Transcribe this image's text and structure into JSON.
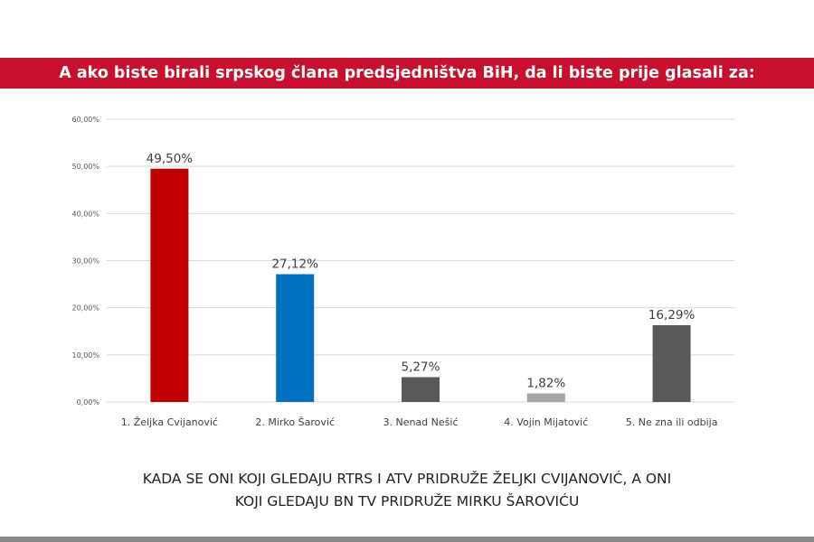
{
  "chart_data": {
    "type": "bar",
    "title": "A ako biste birali srpskog člana predsjedništva BiH, da li biste prije glasali za:",
    "categories": [
      "1. Željka Cvijanović",
      "2. Mirko Šarović",
      "3. Nenad Nešić",
      "4. Vojin Mijatović",
      "5. Ne zna ili odbija"
    ],
    "values": [
      49.5,
      27.12,
      5.27,
      1.82,
      16.29
    ],
    "data_labels": [
      "49,50%",
      "27,12%",
      "5,27%",
      "1,82%",
      "16,29%"
    ],
    "colors": [
      "#c00000",
      "#0070c0",
      "#595959",
      "#a6a6a6",
      "#595959"
    ],
    "yticks": [
      "0,00%",
      "10,00%",
      "20,00%",
      "30,00%",
      "40,00%",
      "50,00%",
      "60,00%"
    ],
    "ylim": [
      0,
      60
    ],
    "grid": true,
    "legend": "none",
    "xlabel": "",
    "ylabel": ""
  },
  "caption": {
    "line1": "KADA SE ONI KOJI GLEDAJU RTRS I ATV PRIDRUŽE ŽELJKI CVIJANOVIĆ, A ONI",
    "line2": "KOJI GLEDAJU BN TV PRIDRUŽE MIRKU ŠAROVIĆU"
  },
  "colors": {
    "title_bar": "#c8102e",
    "gridline": "#d9d9d9",
    "bottom_rule": "#8a8a8a"
  }
}
